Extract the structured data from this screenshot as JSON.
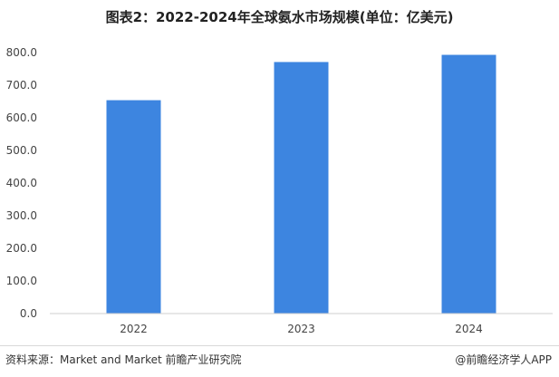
{
  "chart_data": {
    "type": "bar",
    "title": "图表2：2022-2024年全球氨水市场规模(单位：亿美元)",
    "categories": [
      "2022",
      "2023",
      "2024"
    ],
    "values": [
      654,
      771,
      793
    ],
    "ylim": [
      0,
      800
    ],
    "yticks": [
      "0.0",
      "100.0",
      "200.0",
      "300.0",
      "400.0",
      "500.0",
      "600.0",
      "700.0",
      "800.0"
    ],
    "grid": false,
    "bar_color": "#3D85E0"
  },
  "footer": {
    "source": "资料来源：Market and Market 前瞻产业研究院",
    "brand": "@前瞻经济学人APP"
  }
}
